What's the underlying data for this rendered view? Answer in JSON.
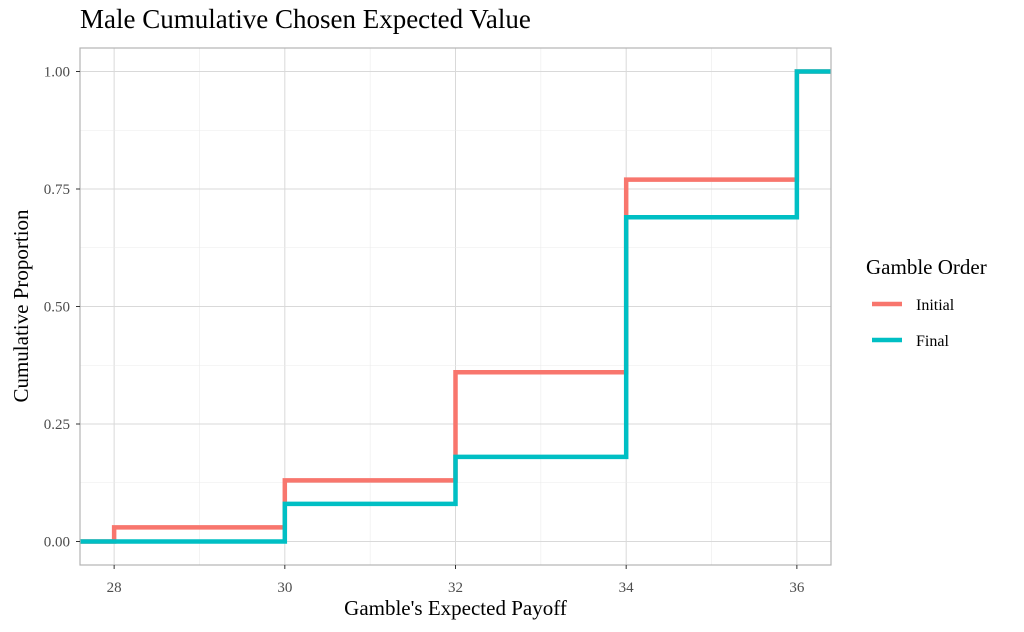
{
  "chart_data": {
    "type": "line",
    "step": true,
    "title": "Male Cumulative Chosen Expected Value",
    "xlabel": "Gamble's Expected Payoff",
    "ylabel": "Cumulative Proportion",
    "xlim": [
      27.6,
      36.4
    ],
    "ylim": [
      -0.05,
      1.05
    ],
    "x_ticks": [
      28,
      30,
      32,
      34,
      36
    ],
    "x_tick_labels": [
      "28",
      "30",
      "32",
      "34",
      "36"
    ],
    "y_ticks": [
      0,
      0.25,
      0.5,
      0.75,
      1.0
    ],
    "y_tick_labels": [
      "0.00",
      "0.25",
      "0.50",
      "0.75",
      "1.00"
    ],
    "grid": true,
    "legend": {
      "title": "Gamble Order",
      "position": "right"
    },
    "series": [
      {
        "name": "Initial",
        "color": "#F8766D",
        "x": [
          28,
          30,
          32,
          34,
          36
        ],
        "y": [
          0.03,
          0.13,
          0.36,
          0.77,
          1.0
        ]
      },
      {
        "name": "Final",
        "color": "#00BFC4",
        "x": [
          28,
          30,
          32,
          34,
          36
        ],
        "y": [
          0.0,
          0.08,
          0.18,
          0.69,
          1.0
        ]
      }
    ]
  }
}
